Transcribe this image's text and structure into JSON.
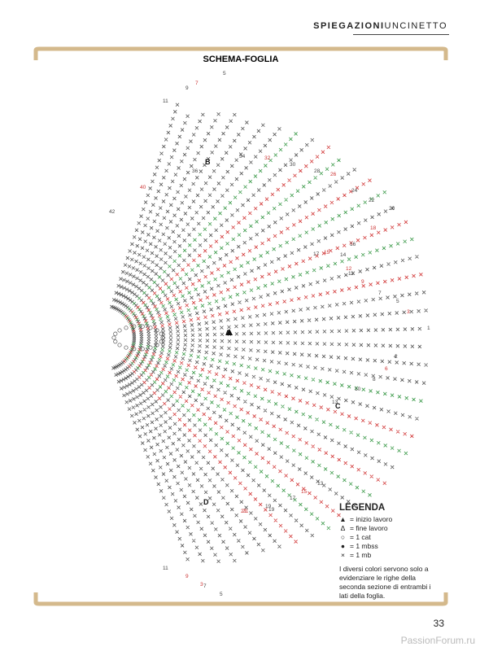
{
  "header": {
    "section_bold": "SPIEGAZIONI",
    "section_light": "UNCINETTO"
  },
  "title": "SCHEMA-FOGLIA",
  "diagram": {
    "labels": [
      "A",
      "B",
      "C",
      "D",
      "1",
      "2",
      "3",
      "4",
      "5",
      "6",
      "7",
      "8",
      "9",
      "10",
      "11",
      "12",
      "13",
      "14",
      "15",
      "16",
      "17",
      "18",
      "19",
      "20",
      "21",
      "22",
      "24",
      "26",
      "28",
      "30",
      "32",
      "34",
      "36",
      "40",
      "42",
      "5",
      "7",
      "9",
      "11",
      "3",
      "5",
      "7",
      "9",
      "11",
      "13",
      "15",
      "17",
      "19",
      "21"
    ]
  },
  "legend": {
    "title": "LEGENDA",
    "items": [
      {
        "symbol": "▲",
        "text": "= inizio lavoro"
      },
      {
        "symbol": "Δ",
        "text": "= fine lavoro"
      },
      {
        "symbol": "○",
        "text": "= 1 cat"
      },
      {
        "symbol": "●",
        "text": "= 1 mbss"
      },
      {
        "symbol": "×",
        "text": "= 1 mb"
      }
    ],
    "note": "I diversi colori servono solo a evidenziare le righe della seconda sezione di entrambi i lati della foglia."
  },
  "footer": {
    "page_number": "33",
    "watermark": "PassionForum.ru"
  }
}
